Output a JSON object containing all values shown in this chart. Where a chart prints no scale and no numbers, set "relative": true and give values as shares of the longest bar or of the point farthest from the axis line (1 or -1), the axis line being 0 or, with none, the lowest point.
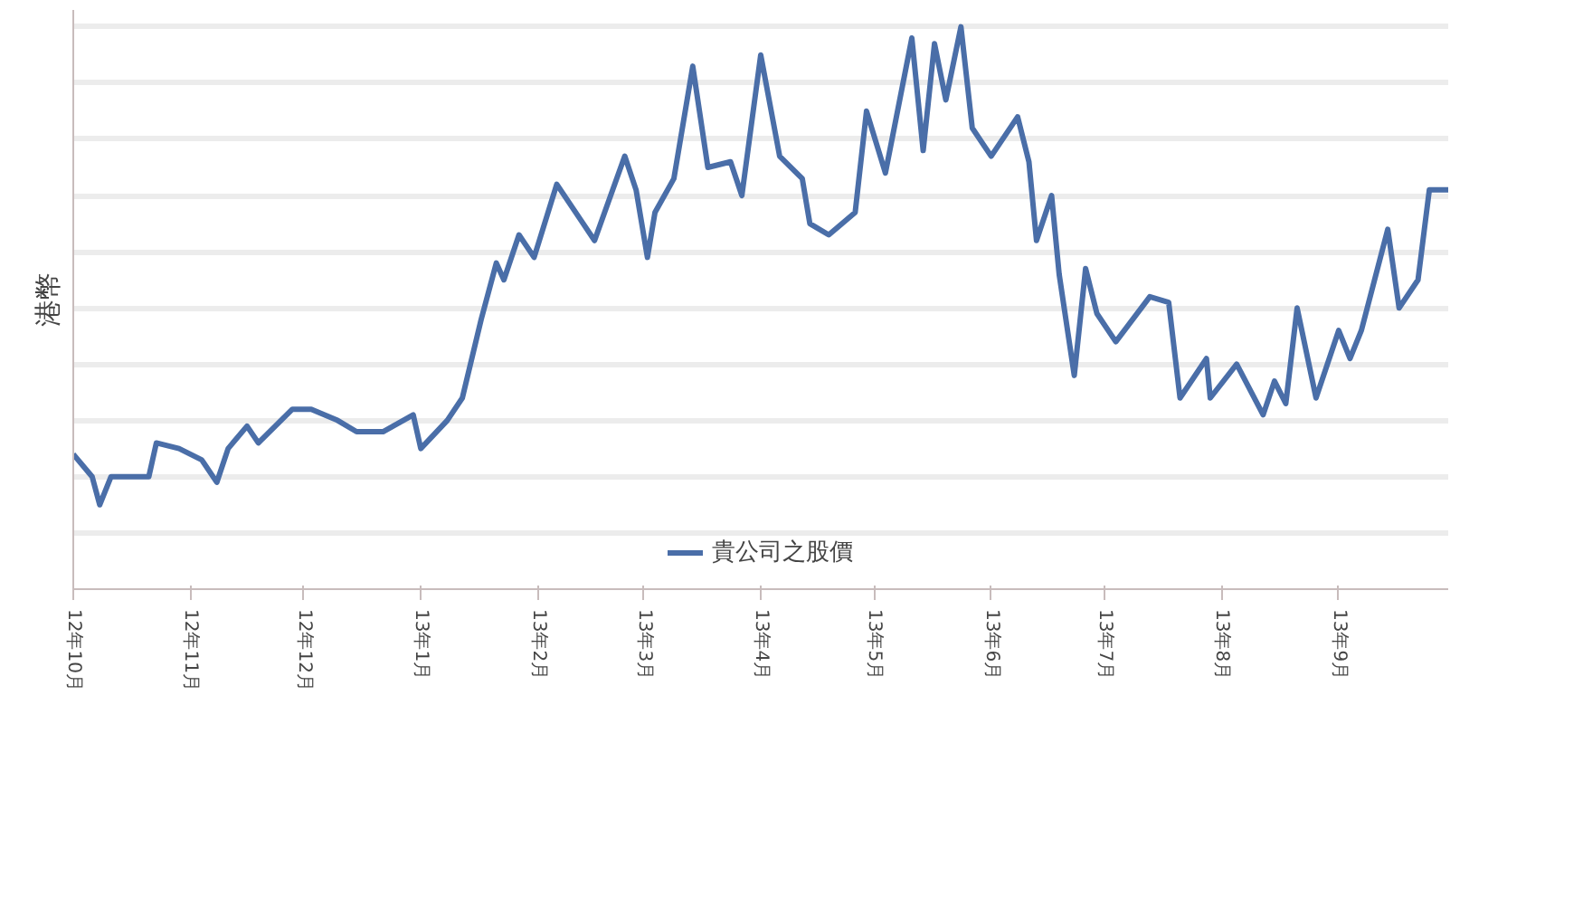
{
  "chart_data": {
    "type": "line",
    "ylabel": "港幣",
    "relative": true,
    "grid": "y",
    "legend": "bottom",
    "marker": "none",
    "line_style": "solid",
    "xlim": [
      "2012-10-01",
      "2013-09-30"
    ],
    "xticks": [
      {
        "value": "2012-10-01",
        "label": "12年10月"
      },
      {
        "value": "2012-11-01",
        "label": "12年11月"
      },
      {
        "value": "2012-12-01",
        "label": "12年12月"
      },
      {
        "value": "2013-01-01",
        "label": "13年1月"
      },
      {
        "value": "2013-02-01",
        "label": "13年2月"
      },
      {
        "value": "2013-03-01",
        "label": "13年3月"
      },
      {
        "value": "2013-04-01",
        "label": "13年4月"
      },
      {
        "value": "2013-05-01",
        "label": "13年5月"
      },
      {
        "value": "2013-06-01",
        "label": "13年6月"
      },
      {
        "value": "2013-07-01",
        "label": "13年7月"
      },
      {
        "value": "2013-08-01",
        "label": "13年8月"
      },
      {
        "value": "2013-09-01",
        "label": "13年9月"
      }
    ],
    "series": [
      {
        "name": "貴公司之股價",
        "color": "#4a6ea8",
        "x": [
          "2012-10-01",
          "2012-10-06",
          "2012-10-08",
          "2012-10-11",
          "2012-10-21",
          "2012-10-23",
          "2012-10-29",
          "2012-11-04",
          "2012-11-08",
          "2012-11-11",
          "2012-11-16",
          "2012-11-19",
          "2012-11-28",
          "2012-12-03",
          "2012-12-10",
          "2012-12-15",
          "2012-12-22",
          "2012-12-30",
          "2013-01-01",
          "2013-01-08",
          "2013-01-12",
          "2013-01-17",
          "2013-01-21",
          "2013-01-23",
          "2013-01-27",
          "2013-01-31",
          "2013-02-06",
          "2013-02-13",
          "2013-02-16",
          "2013-02-24",
          "2013-02-27",
          "2013-03-02",
          "2013-03-04",
          "2013-03-09",
          "2013-03-14",
          "2013-03-18",
          "2013-03-24",
          "2013-03-27",
          "2013-04-01",
          "2013-04-06",
          "2013-04-12",
          "2013-04-14",
          "2013-04-19",
          "2013-04-26",
          "2013-04-29",
          "2013-05-04",
          "2013-05-11",
          "2013-05-14",
          "2013-05-17",
          "2013-05-20",
          "2013-05-24",
          "2013-05-27",
          "2013-06-01",
          "2013-06-08",
          "2013-06-11",
          "2013-06-13",
          "2013-06-17",
          "2013-06-19",
          "2013-06-23",
          "2013-06-26",
          "2013-06-29",
          "2013-07-04",
          "2013-07-13",
          "2013-07-18",
          "2013-07-21",
          "2013-07-28",
          "2013-07-29",
          "2013-08-05",
          "2013-08-12",
          "2013-08-15",
          "2013-08-18",
          "2013-08-21",
          "2013-08-26",
          "2013-09-01",
          "2013-09-04",
          "2013-09-07",
          "2013-09-14",
          "2013-09-17",
          "2013-09-22",
          "2013-09-25",
          "2013-09-30"
        ],
        "values": [
          0.24,
          0.2,
          0.15,
          0.2,
          0.2,
          0.26,
          0.25,
          0.23,
          0.19,
          0.25,
          0.29,
          0.26,
          0.32,
          0.32,
          0.3,
          0.28,
          0.28,
          0.31,
          0.25,
          0.3,
          0.34,
          0.48,
          0.58,
          0.55,
          0.63,
          0.59,
          0.72,
          0.65,
          0.62,
          0.77,
          0.71,
          0.59,
          0.67,
          0.73,
          0.93,
          0.75,
          0.76,
          0.7,
          0.95,
          0.77,
          0.73,
          0.65,
          0.63,
          0.67,
          0.85,
          0.74,
          0.98,
          0.78,
          0.97,
          0.87,
          1.0,
          0.82,
          0.77,
          0.84,
          0.76,
          0.62,
          0.7,
          0.56,
          0.38,
          0.57,
          0.49,
          0.44,
          0.52,
          0.51,
          0.34,
          0.41,
          0.34,
          0.4,
          0.31,
          0.37,
          0.33,
          0.5,
          0.34,
          0.46,
          0.41,
          0.46,
          0.64,
          0.5,
          0.55,
          0.71,
          0.71
        ]
      }
    ]
  }
}
